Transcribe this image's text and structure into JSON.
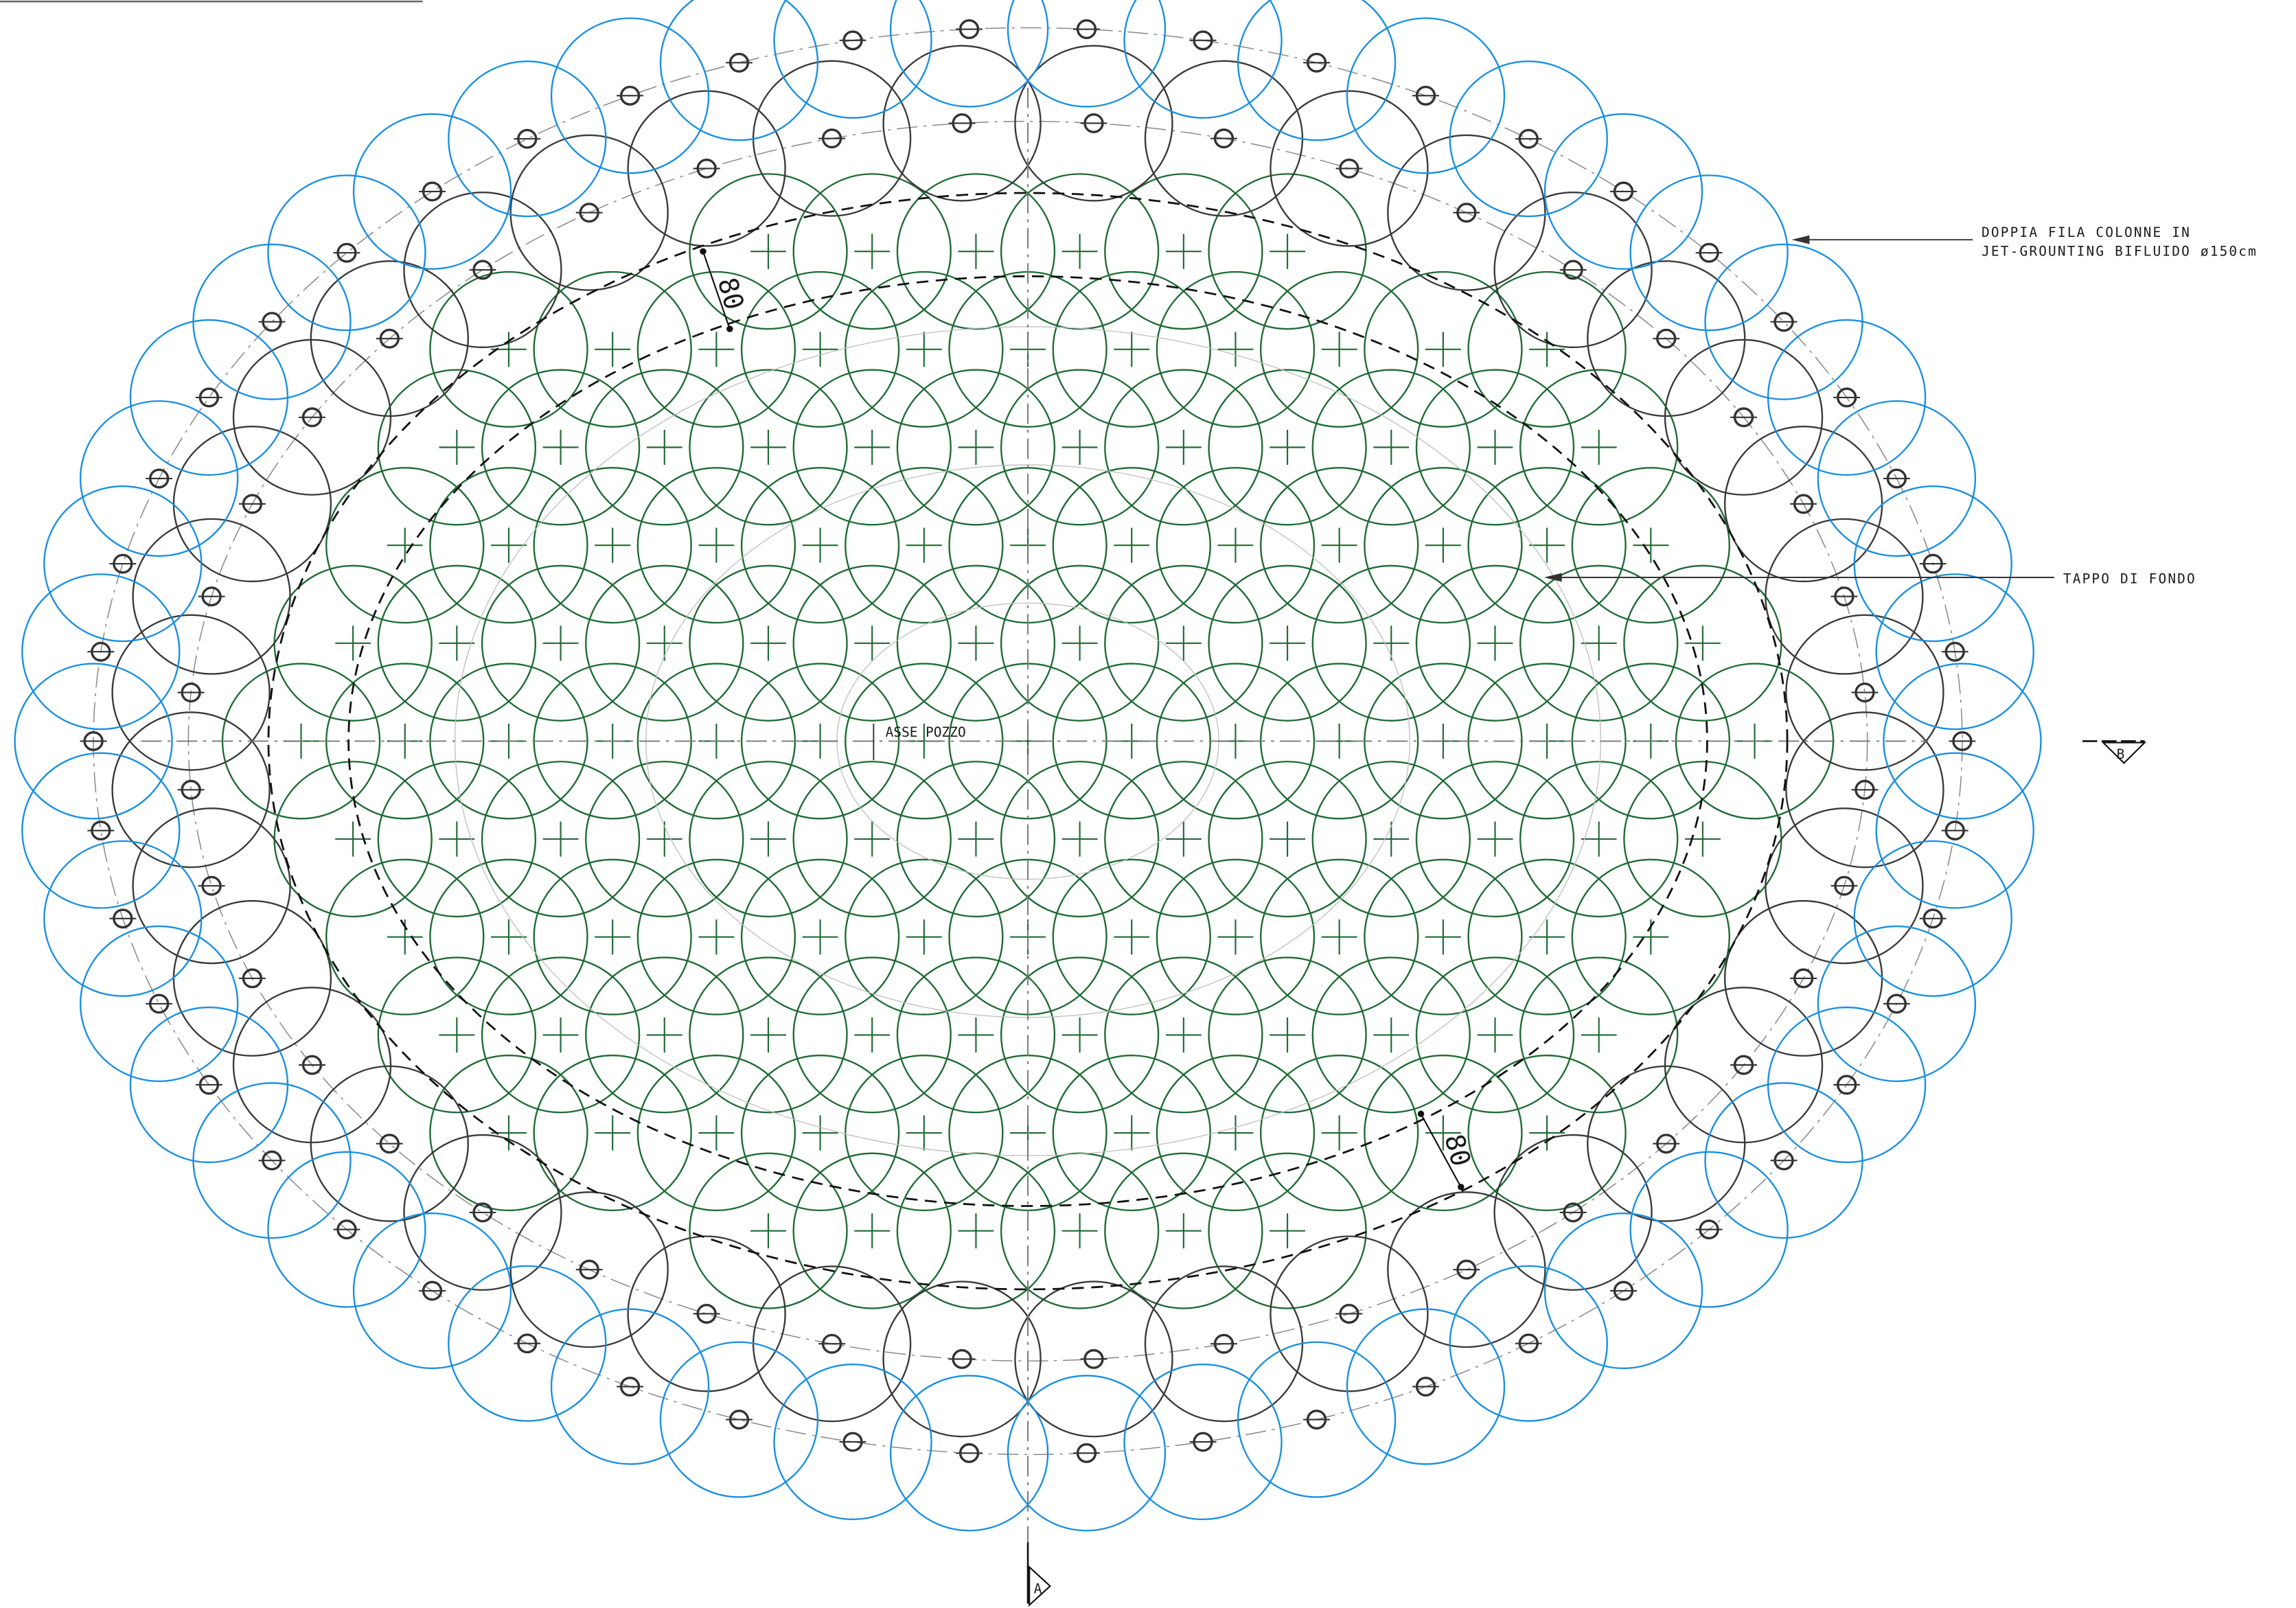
{
  "annotations": {
    "double_row_line1": "DOPPIA FILA COLONNE IN",
    "double_row_line2": "JET-GROUNTING BIFLUIDO ø150cm",
    "bottom_plug": "TAPPO DI FONDO",
    "shaft_axis": "ASSE POZZO",
    "dimension_top": "80",
    "dimension_bottom": "80",
    "section_b": "B",
    "section_a": "A"
  },
  "colors": {
    "outer_row": "#1a8fe0",
    "inner_row": "#3a3a3a",
    "plug_columns": "#1f6b35",
    "axis": "#7a7a7a",
    "dashed": "#111111"
  },
  "elements": {
    "outer_row_count": 50,
    "inner_row_count": 40
  }
}
